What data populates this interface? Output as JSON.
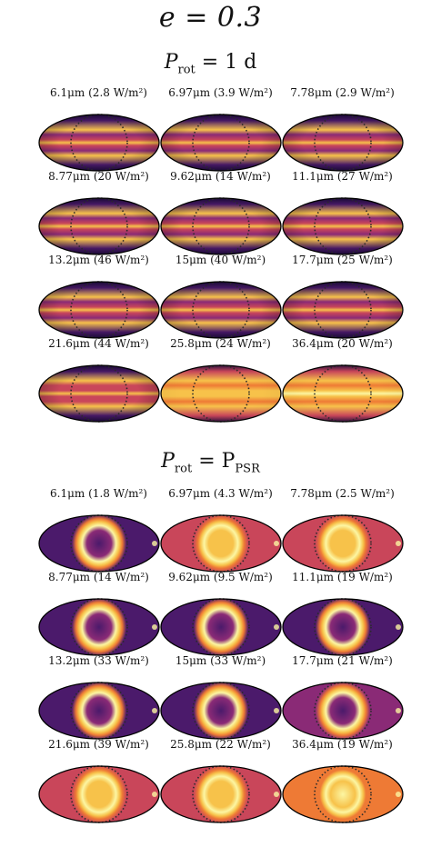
{
  "title": "e = 0.3",
  "sections": [
    {
      "title_prefix": "P",
      "title_subscript": "rot",
      "title_rhs": "= 1 d",
      "palette": "rot1d",
      "panels": [
        {
          "label": "6.1μm (2.8 W/m²)",
          "brightness": 0.35
        },
        {
          "label": "6.97μm (3.9 W/m²)",
          "brightness": 0.45
        },
        {
          "label": "7.78μm (2.9 W/m²)",
          "brightness": 0.45
        },
        {
          "label": "8.77μm (20 W/m²)",
          "brightness": 0.45
        },
        {
          "label": "9.62μm (14 W/m²)",
          "brightness": 0.45
        },
        {
          "label": "11.1μm (27 W/m²)",
          "brightness": 0.45
        },
        {
          "label": "13.2μm (46 W/m²)",
          "brightness": 0.45
        },
        {
          "label": "15μm (40 W/m²)",
          "brightness": 0.5
        },
        {
          "label": "17.7μm (25 W/m²)",
          "brightness": 0.5
        },
        {
          "label": "21.6μm (44 W/m²)",
          "brightness": 0.6
        },
        {
          "label": "25.8μm (24 W/m²)",
          "brightness": 0.72
        },
        {
          "label": "36.4μm (20 W/m²)",
          "brightness": 0.85
        }
      ]
    },
    {
      "title_prefix": "P",
      "title_subscript": "rot",
      "title_rhs": "= P",
      "title_rhs_subscript": "PSR",
      "palette": "psr",
      "panels": [
        {
          "label": "6.1μm (1.8 W/m²)",
          "brightness": 0.2
        },
        {
          "label": "6.97μm (4.3 W/m²)",
          "brightness": 0.6
        },
        {
          "label": "7.78μm (2.5 W/m²)",
          "brightness": 0.55
        },
        {
          "label": "8.77μm (14 W/m²)",
          "brightness": 0.2
        },
        {
          "label": "9.62μm (9.5 W/m²)",
          "brightness": 0.2
        },
        {
          "label": "11.1μm (19 W/m²)",
          "brightness": 0.2
        },
        {
          "label": "13.2μm (33 W/m²)",
          "brightness": 0.3
        },
        {
          "label": "15μm (33 W/m²)",
          "brightness": 0.35
        },
        {
          "label": "17.7μm (21 W/m²)",
          "brightness": 0.4
        },
        {
          "label": "21.6μm (39 W/m²)",
          "brightness": 0.55
        },
        {
          "label": "25.8μm (22 W/m²)",
          "brightness": 0.6
        },
        {
          "label": "36.4μm (19 W/m²)",
          "brightness": 0.75
        }
      ]
    }
  ],
  "colors": {
    "dark": "#1a0b3d",
    "purple": "#4b1a6b",
    "magenta": "#8a2a76",
    "red": "#c9465a",
    "orange": "#ee7a35",
    "yellow": "#f7c24a",
    "pale": "#fcf6a3",
    "outline": "#000000",
    "dots": "#2a2a2a"
  }
}
